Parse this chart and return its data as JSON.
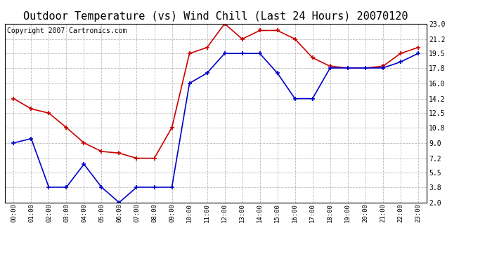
{
  "title": "Outdoor Temperature (vs) Wind Chill (Last 24 Hours) 20070120",
  "copyright_text": "Copyright 2007 Cartronics.com",
  "x_labels": [
    "00:00",
    "01:00",
    "02:00",
    "03:00",
    "04:00",
    "05:00",
    "06:00",
    "07:00",
    "08:00",
    "09:00",
    "10:00",
    "11:00",
    "12:00",
    "13:00",
    "14:00",
    "15:00",
    "16:00",
    "17:00",
    "18:00",
    "19:00",
    "20:00",
    "21:00",
    "22:00",
    "23:00"
  ],
  "temp_red": [
    14.2,
    13.0,
    12.5,
    10.8,
    9.0,
    8.0,
    7.8,
    7.2,
    7.2,
    10.8,
    19.5,
    20.2,
    23.0,
    21.2,
    22.2,
    22.2,
    21.2,
    19.0,
    18.0,
    17.8,
    17.8,
    18.0,
    19.5,
    20.2
  ],
  "wind_chill_blue": [
    9.0,
    9.5,
    3.8,
    3.8,
    6.5,
    3.8,
    2.0,
    3.8,
    3.8,
    3.8,
    16.0,
    17.2,
    19.5,
    19.5,
    19.5,
    17.2,
    14.2,
    14.2,
    17.8,
    17.8,
    17.8,
    17.8,
    18.5,
    19.5
  ],
  "y_ticks": [
    2.0,
    3.8,
    5.5,
    7.2,
    9.0,
    10.8,
    12.5,
    14.2,
    16.0,
    17.8,
    19.5,
    21.2,
    23.0
  ],
  "ylim": [
    2.0,
    23.0
  ],
  "red_color": "#cc0000",
  "blue_color": "#0000cc",
  "background_color": "#ffffff",
  "grid_color": "#bbbbbb",
  "title_fontsize": 11,
  "copyright_fontsize": 7
}
